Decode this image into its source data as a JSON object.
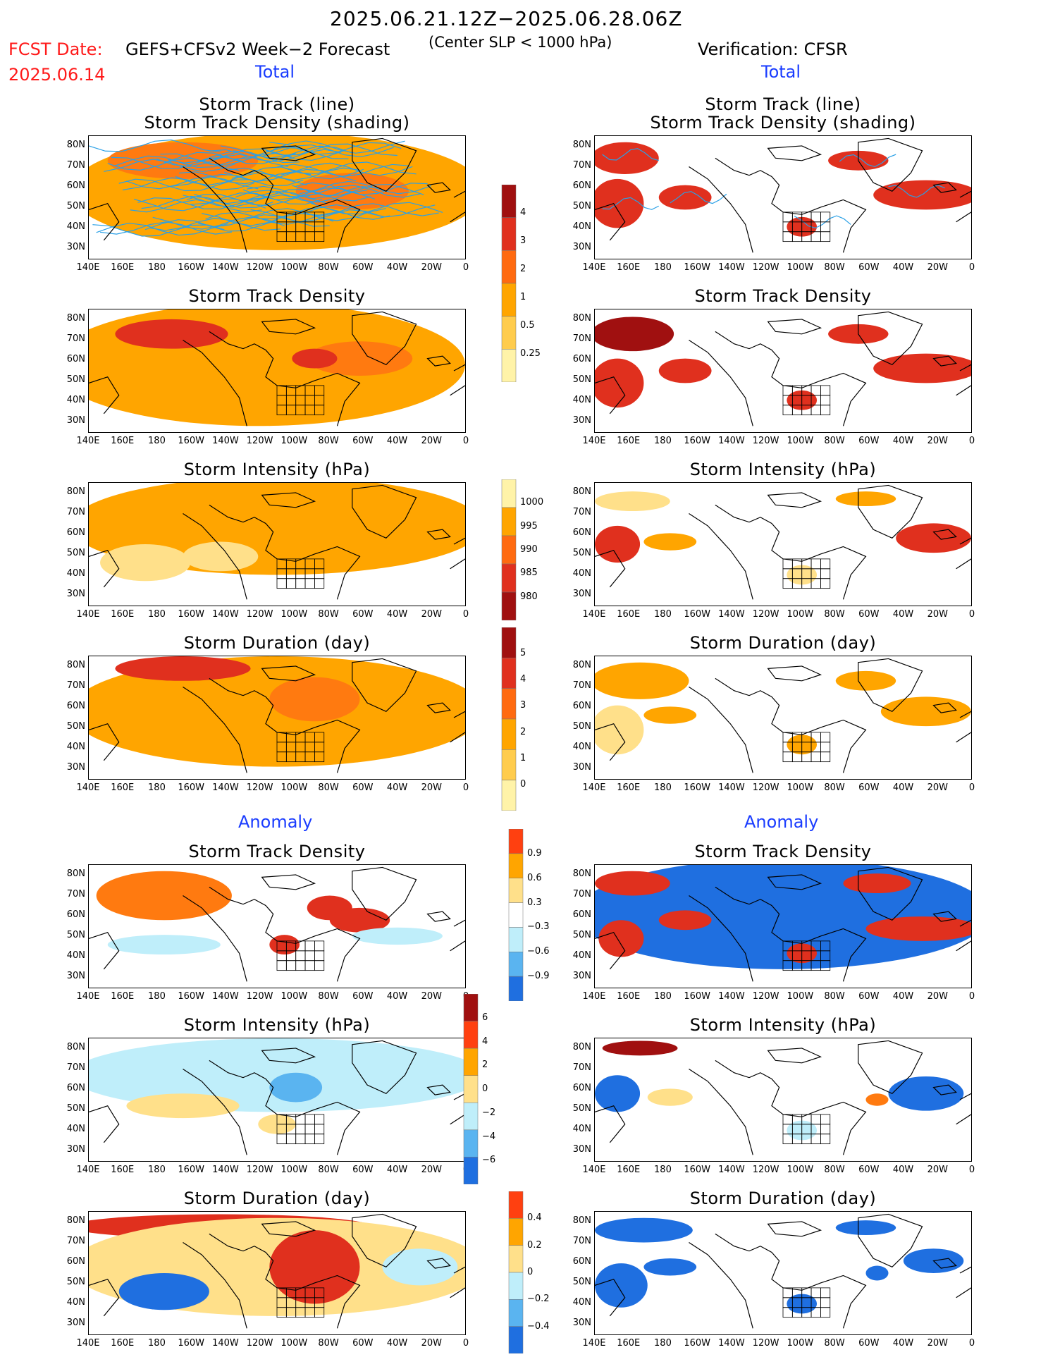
{
  "header": {
    "period": "2025.06.21.12Z−2025.06.28.06Z",
    "fcst_label": "FCST Date:",
    "fcst_date": "2025.06.14",
    "model": "GEFS+CFSv2 Week−2 Forecast",
    "criterion": "(Center SLP < 1000 hPa)",
    "verification": "Verification: CFSR"
  },
  "sections": {
    "total_left": "Total",
    "total_right": "Total",
    "anom_left": "Anomaly",
    "anom_right": "Anomaly"
  },
  "panel_titles": {
    "track_line": "Storm Track (line)",
    "track_shading": "Storm Track Density (shading)",
    "density": "Storm Track Density",
    "intensity": "Storm Intensity (hPa)",
    "duration": "Storm Duration (day)"
  },
  "axes": {
    "lat_ticks": [
      "80N",
      "70N",
      "60N",
      "50N",
      "40N",
      "30N"
    ],
    "lon_ticks": [
      "140E",
      "160E",
      "180",
      "160W",
      "140W",
      "120W",
      "100W",
      "80W",
      "60W",
      "40W",
      "20W",
      "0"
    ]
  },
  "colorbars": {
    "density_total": {
      "labels": [
        "4",
        "3",
        "2",
        "1",
        "0.5",
        "0.25"
      ],
      "colors": [
        "#a01010",
        "#e0301e",
        "#ff6a10",
        "#ffa500",
        "#ffcc4d",
        "#fff3a8"
      ]
    },
    "intensity_total": {
      "labels": [
        "1000",
        "995",
        "990",
        "985",
        "980"
      ],
      "colors": [
        "#fff3a8",
        "#ffa500",
        "#ff6a10",
        "#e0301e",
        "#a01010"
      ]
    },
    "duration_total": {
      "labels": [
        "5",
        "4",
        "3",
        "2",
        "1",
        "0"
      ],
      "colors": [
        "#a01010",
        "#e0301e",
        "#ff6a10",
        "#ffa500",
        "#ffcc4d",
        "#fff3a8"
      ]
    },
    "density_anom": {
      "labels": [
        "0.9",
        "0.6",
        "0.3",
        "−0.3",
        "−0.6",
        "−0.9"
      ],
      "colors": [
        "#ff4010",
        "#ffa500",
        "#ffe08a",
        "#ffffff",
        "#bfeefa",
        "#5ab4f0",
        "#1f6fe0"
      ]
    },
    "intensity_anom": {
      "labels": [
        "6",
        "4",
        "2",
        "0",
        "−2",
        "−4",
        "−6"
      ],
      "colors": [
        "#a01010",
        "#ff4010",
        "#ffa500",
        "#ffe08a",
        "#bfeefa",
        "#5ab4f0",
        "#1f6fe0"
      ]
    },
    "duration_anom": {
      "labels": [
        "0.4",
        "0.2",
        "0",
        "−0.2",
        "−0.4"
      ],
      "colors": [
        "#ff4010",
        "#ffa500",
        "#ffe08a",
        "#bfeefa",
        "#5ab4f0",
        "#1f6fe0"
      ]
    }
  },
  "colors": {
    "warm_dark": "#a01010",
    "warm_red": "#e0301e",
    "warm_orange": "#ff7a10",
    "warm_light": "#ffa500",
    "warm_pale": "#ffe08a",
    "cold_pale": "#bfeefa",
    "cold_mid": "#5ab4f0",
    "cold_dark": "#1f6fe0",
    "track_line": "#2aa0e6"
  }
}
